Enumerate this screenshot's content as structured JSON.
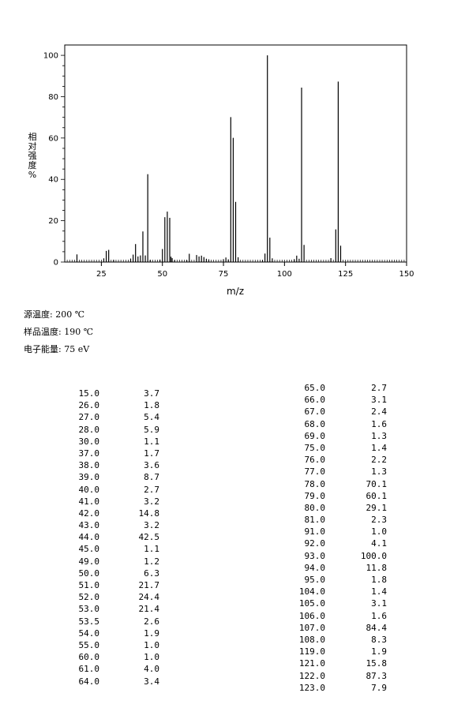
{
  "chart_data": {
    "type": "bar",
    "xlabel": "m/z",
    "ylabel_chars": [
      "相",
      "对",
      "强",
      "度",
      "%"
    ],
    "xlim": [
      10,
      150
    ],
    "ylim": [
      0,
      105
    ],
    "xticks": [
      25,
      50,
      75,
      100,
      125,
      150
    ],
    "yticks": [
      0,
      20,
      40,
      60,
      80,
      100
    ],
    "grid": false,
    "peaks": [
      {
        "mz": 15.0,
        "intensity": 3.7
      },
      {
        "mz": 26.0,
        "intensity": 1.8
      },
      {
        "mz": 27.0,
        "intensity": 5.4
      },
      {
        "mz": 28.0,
        "intensity": 5.9
      },
      {
        "mz": 30.0,
        "intensity": 1.1
      },
      {
        "mz": 37.0,
        "intensity": 1.7
      },
      {
        "mz": 38.0,
        "intensity": 3.6
      },
      {
        "mz": 39.0,
        "intensity": 8.7
      },
      {
        "mz": 40.0,
        "intensity": 2.7
      },
      {
        "mz": 41.0,
        "intensity": 3.2
      },
      {
        "mz": 42.0,
        "intensity": 14.8
      },
      {
        "mz": 43.0,
        "intensity": 3.2
      },
      {
        "mz": 44.0,
        "intensity": 42.5
      },
      {
        "mz": 45.0,
        "intensity": 1.1
      },
      {
        "mz": 49.0,
        "intensity": 1.2
      },
      {
        "mz": 50.0,
        "intensity": 6.3
      },
      {
        "mz": 51.0,
        "intensity": 21.7
      },
      {
        "mz": 52.0,
        "intensity": 24.4
      },
      {
        "mz": 53.0,
        "intensity": 21.4
      },
      {
        "mz": 53.5,
        "intensity": 2.6
      },
      {
        "mz": 54.0,
        "intensity": 1.9
      },
      {
        "mz": 55.0,
        "intensity": 1.0
      },
      {
        "mz": 60.0,
        "intensity": 1.0
      },
      {
        "mz": 61.0,
        "intensity": 4.0
      },
      {
        "mz": 64.0,
        "intensity": 3.4
      },
      {
        "mz": 65.0,
        "intensity": 2.7
      },
      {
        "mz": 66.0,
        "intensity": 3.1
      },
      {
        "mz": 67.0,
        "intensity": 2.4
      },
      {
        "mz": 68.0,
        "intensity": 1.6
      },
      {
        "mz": 69.0,
        "intensity": 1.3
      },
      {
        "mz": 75.0,
        "intensity": 1.4
      },
      {
        "mz": 76.0,
        "intensity": 2.2
      },
      {
        "mz": 77.0,
        "intensity": 1.3
      },
      {
        "mz": 78.0,
        "intensity": 70.1
      },
      {
        "mz": 79.0,
        "intensity": 60.1
      },
      {
        "mz": 80.0,
        "intensity": 29.1
      },
      {
        "mz": 81.0,
        "intensity": 2.3
      },
      {
        "mz": 91.0,
        "intensity": 1.0
      },
      {
        "mz": 92.0,
        "intensity": 4.1
      },
      {
        "mz": 93.0,
        "intensity": 100.0
      },
      {
        "mz": 94.0,
        "intensity": 11.8
      },
      {
        "mz": 95.0,
        "intensity": 1.8
      },
      {
        "mz": 104.0,
        "intensity": 1.4
      },
      {
        "mz": 105.0,
        "intensity": 3.1
      },
      {
        "mz": 106.0,
        "intensity": 1.6
      },
      {
        "mz": 107.0,
        "intensity": 84.4
      },
      {
        "mz": 108.0,
        "intensity": 8.3
      },
      {
        "mz": 119.0,
        "intensity": 1.9
      },
      {
        "mz": 121.0,
        "intensity": 15.8
      },
      {
        "mz": 122.0,
        "intensity": 87.3
      },
      {
        "mz": 123.0,
        "intensity": 7.9
      }
    ],
    "bar_color": "#000000"
  },
  "conditions": {
    "source_temp": "源温度: 200 ℃",
    "sample_temp": "样品温度: 190 ℃",
    "electron_energy": "电子能量: 75 eV"
  },
  "peak_table": {
    "left": [
      [
        "15.0",
        "3.7"
      ],
      [
        "26.0",
        "1.8"
      ],
      [
        "27.0",
        "5.4"
      ],
      [
        "28.0",
        "5.9"
      ],
      [
        "30.0",
        "1.1"
      ],
      [
        "37.0",
        "1.7"
      ],
      [
        "38.0",
        "3.6"
      ],
      [
        "39.0",
        "8.7"
      ],
      [
        "40.0",
        "2.7"
      ],
      [
        "41.0",
        "3.2"
      ],
      [
        "42.0",
        "14.8"
      ],
      [
        "43.0",
        "3.2"
      ],
      [
        "44.0",
        "42.5"
      ],
      [
        "45.0",
        "1.1"
      ],
      [
        "49.0",
        "1.2"
      ],
      [
        "50.0",
        "6.3"
      ],
      [
        "51.0",
        "21.7"
      ],
      [
        "52.0",
        "24.4"
      ],
      [
        "53.0",
        "21.4"
      ],
      [
        "53.5",
        "2.6"
      ],
      [
        "54.0",
        "1.9"
      ],
      [
        "55.0",
        "1.0"
      ],
      [
        "60.0",
        "1.0"
      ],
      [
        "61.0",
        "4.0"
      ],
      [
        "64.0",
        "3.4"
      ]
    ],
    "right": [
      [
        "65.0",
        "2.7"
      ],
      [
        "66.0",
        "3.1"
      ],
      [
        "67.0",
        "2.4"
      ],
      [
        "68.0",
        "1.6"
      ],
      [
        "69.0",
        "1.3"
      ],
      [
        "75.0",
        "1.4"
      ],
      [
        "76.0",
        "2.2"
      ],
      [
        "77.0",
        "1.3"
      ],
      [
        "78.0",
        "70.1"
      ],
      [
        "79.0",
        "60.1"
      ],
      [
        "80.0",
        "29.1"
      ],
      [
        "81.0",
        "2.3"
      ],
      [
        "91.0",
        "1.0"
      ],
      [
        "92.0",
        "4.1"
      ],
      [
        "93.0",
        "100.0"
      ],
      [
        "94.0",
        "11.8"
      ],
      [
        "95.0",
        "1.8"
      ],
      [
        "104.0",
        "1.4"
      ],
      [
        "105.0",
        "3.1"
      ],
      [
        "106.0",
        "1.6"
      ],
      [
        "107.0",
        "84.4"
      ],
      [
        "108.0",
        "8.3"
      ],
      [
        "119.0",
        "1.9"
      ],
      [
        "121.0",
        "15.8"
      ],
      [
        "122.0",
        "87.3"
      ],
      [
        "123.0",
        "7.9"
      ]
    ]
  }
}
